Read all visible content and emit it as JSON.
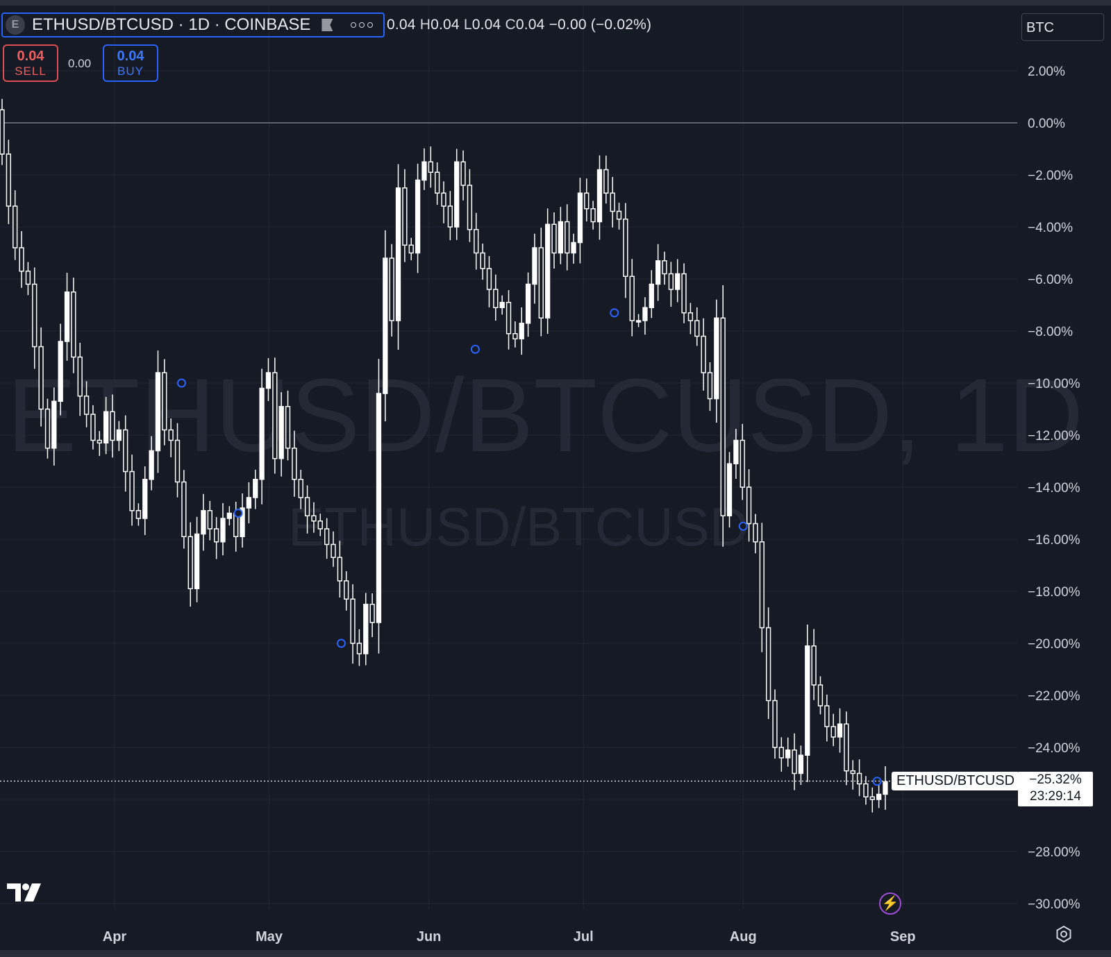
{
  "header": {
    "symbol_initial": "E",
    "symbol_title": "ETHUSD/BTCUSD · 1D · COINBASE",
    "ohlc": {
      "o_val": "0.04",
      "h_key": "H",
      "h_val": "0.04",
      "l_key": "L",
      "l_val": "0.04",
      "c_key": "C",
      "c_val": "0.04",
      "change": "−0.00 (−0.02%)"
    },
    "sell": {
      "price": "0.04",
      "label": "SELL"
    },
    "buy": {
      "price": "0.04",
      "label": "BUY"
    },
    "spread": "0.00",
    "currency": "BTC"
  },
  "watermark": {
    "big": "ETHUSD/BTCUSD, 1D",
    "small": "ETHUSD/BTCUSD"
  },
  "last_price": {
    "symbol": "ETHUSD/BTCUSD",
    "value": "−25.32%",
    "countdown": "23:29:14"
  },
  "colors": {
    "background": "#161a25",
    "candle": "#ffffff",
    "grid": "#242833",
    "accent": "#2962ff",
    "sell": "#f25f5f",
    "marker": "#2962ff"
  },
  "chart_data": {
    "type": "candlestick",
    "title": "ETHUSD/BTCUSD · 1D · COINBASE",
    "scale": "percent",
    "y_unit": "%",
    "ylim": [
      -30,
      2
    ],
    "y_ticks": [
      "2.00%",
      "0.00%",
      "−2.00%",
      "−4.00%",
      "−6.00%",
      "−8.00%",
      "−10.00%",
      "−12.00%",
      "−14.00%",
      "−16.00%",
      "−18.00%",
      "−20.00%",
      "−22.00%",
      "−24.00%",
      "−26.00%",
      "−28.00%",
      "−30.00%"
    ],
    "y_tick_values": [
      2,
      0,
      -2,
      -4,
      -6,
      -8,
      -10,
      -12,
      -14,
      -16,
      -18,
      -20,
      -22,
      -24,
      -26,
      -28,
      -30
    ],
    "x_ticks": [
      "Apr",
      "May",
      "Jun",
      "Jul",
      "Aug",
      "Sep"
    ],
    "x_tick_dates": [
      "2024-04-01",
      "2024-05-01",
      "2024-06-01",
      "2024-07-01",
      "2024-08-01",
      "2024-09-01"
    ],
    "baseline_pct": 0,
    "grid": true,
    "series_pct": [
      -1.2,
      -3.2,
      -4.8,
      -5.7,
      -6.2,
      -8.6,
      -11.0,
      -12.5,
      -10.7,
      -8.4,
      -6.5,
      -9.0,
      -10.5,
      -11.2,
      -12.2,
      -12.3,
      -11.1,
      -12.2,
      -11.8,
      -13.4,
      -14.9,
      -15.2,
      -13.7,
      -12.6,
      -9.6,
      -11.8,
      -12.2,
      -13.8,
      -15.9,
      -17.9,
      -15.8,
      -14.9,
      -15.6,
      -16.1,
      -15.2,
      -15.0,
      -15.9,
      -14.8,
      -14.4,
      -13.7,
      -10.2,
      -9.6,
      -12.9,
      -10.9,
      -12.5,
      -13.7,
      -14.4,
      -15.1,
      -15.3,
      -15.6,
      -16.2,
      -16.7,
      -17.6,
      -18.3,
      -20.0,
      -20.4,
      -18.5,
      -19.2,
      -10.4,
      -5.2,
      -7.6,
      -2.5,
      -4.7,
      -5.0,
      -2.2,
      -1.5,
      -1.9,
      -2.7,
      -3.2,
      -4.0,
      -1.5,
      -2.4,
      -4.1,
      -5.0,
      -5.6,
      -6.4,
      -7.1,
      -6.9,
      -8.1,
      -8.3,
      -7.7,
      -6.2,
      -4.8,
      -7.5,
      -3.9,
      -5.0,
      -3.8,
      -5.0,
      -4.6,
      -2.7,
      -3.3,
      -3.8,
      -1.8,
      -2.7,
      -3.4,
      -3.7,
      -5.9,
      -7.6,
      -7.6,
      -7.1,
      -6.2,
      -5.3,
      -5.8,
      -6.4,
      -5.8,
      -7.3,
      -7.6,
      -8.2,
      -9.6,
      -10.6,
      -7.5,
      -15.1,
      -13.1,
      -12.2,
      -14.0,
      -15.4,
      -16.1,
      -19.4,
      -22.2,
      -24.0,
      -24.4,
      -24.1,
      -25.0,
      -24.3,
      -20.1,
      -21.6,
      -22.4,
      -23.2,
      -23.6,
      -23.1,
      -24.9,
      -25.0,
      -25.4,
      -25.9,
      -26.0,
      -25.8,
      -25.32
    ],
    "markers": [
      {
        "date": "2024-04-14",
        "value_pct": -10.0
      },
      {
        "date": "2024-04-25",
        "value_pct": -15.0
      },
      {
        "date": "2024-05-15",
        "value_pct": -20.0
      },
      {
        "date": "2024-06-10",
        "value_pct": -8.7
      },
      {
        "date": "2024-07-07",
        "value_pct": -7.3
      },
      {
        "date": "2024-08-01",
        "value_pct": -15.5
      },
      {
        "date": "2024-08-27",
        "value_pct": -25.3
      }
    ]
  }
}
